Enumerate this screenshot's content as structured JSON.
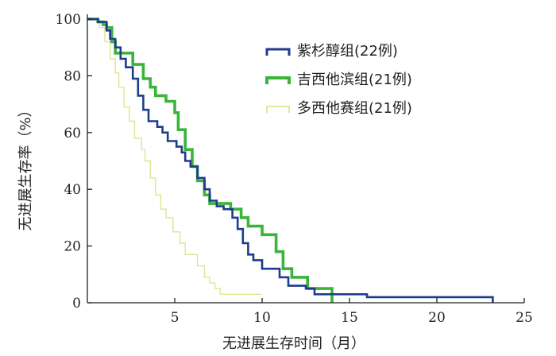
{
  "chart_data": {
    "type": "line",
    "step": true,
    "xlabel": "无进展生存时间（月）",
    "ylabel": "无进展生存率（%）",
    "xlim": [
      0,
      25
    ],
    "ylim": [
      0,
      100
    ],
    "xticks": [
      5,
      10,
      15,
      20,
      25
    ],
    "yticks": [
      0,
      20,
      40,
      60,
      80,
      100
    ],
    "grid": false,
    "legend_position": "top-right",
    "series": [
      {
        "name": "紫杉醇组(22例)",
        "color": "#1f3c8c",
        "x": [
          0,
          0.6,
          1.1,
          1.3,
          1.6,
          1.9,
          2.2,
          2.6,
          2.9,
          3.2,
          3.5,
          4.0,
          4.3,
          4.6,
          5.1,
          5.4,
          5.6,
          5.9,
          6.3,
          6.7,
          7.0,
          7.4,
          7.8,
          8.3,
          8.6,
          8.9,
          9.2,
          9.5,
          10.0,
          11.0,
          11.5,
          12.5,
          13.0,
          16.0,
          23.2
        ],
        "y": [
          100,
          99,
          96,
          93,
          90,
          86,
          83,
          79,
          73,
          68,
          64,
          62,
          60,
          57,
          55,
          53,
          50,
          48,
          44,
          40,
          36,
          34,
          33,
          30,
          26,
          21,
          17,
          15,
          12,
          9,
          6,
          5,
          3,
          2,
          0
        ]
      },
      {
        "name": "吉西他滨组(21例)",
        "color": "#3ab53a",
        "x": [
          0,
          0.6,
          0.9,
          1.1,
          1.4,
          1.6,
          2.6,
          3.2,
          3.6,
          3.9,
          4.5,
          5.0,
          5.2,
          5.6,
          6.0,
          6.3,
          6.7,
          7.0,
          8.2,
          8.8,
          9.2,
          10.0,
          10.8,
          11.2,
          11.7,
          12.6,
          14.0
        ],
        "y": [
          100,
          99,
          98,
          97,
          92,
          88,
          84,
          79,
          76,
          73,
          71,
          67,
          61,
          54,
          48,
          43,
          38,
          35,
          33,
          30,
          27,
          24,
          18,
          12,
          9,
          5,
          0
        ]
      },
      {
        "name": "多西他赛组(21例)",
        "color": "#dde68e",
        "x": [
          0,
          0.7,
          1.0,
          1.3,
          1.6,
          1.8,
          2.1,
          2.4,
          2.7,
          3.1,
          3.3,
          3.6,
          3.9,
          4.2,
          4.5,
          4.9,
          5.3,
          5.6,
          6.3,
          6.7,
          7.0,
          7.3,
          7.6,
          8.0,
          10.0
        ],
        "y": [
          100,
          97,
          92,
          86,
          81,
          76,
          69,
          64,
          58,
          54,
          50,
          44,
          38,
          33,
          30,
          25,
          21,
          17,
          13,
          9,
          7,
          5,
          3,
          3,
          3
        ]
      }
    ]
  }
}
